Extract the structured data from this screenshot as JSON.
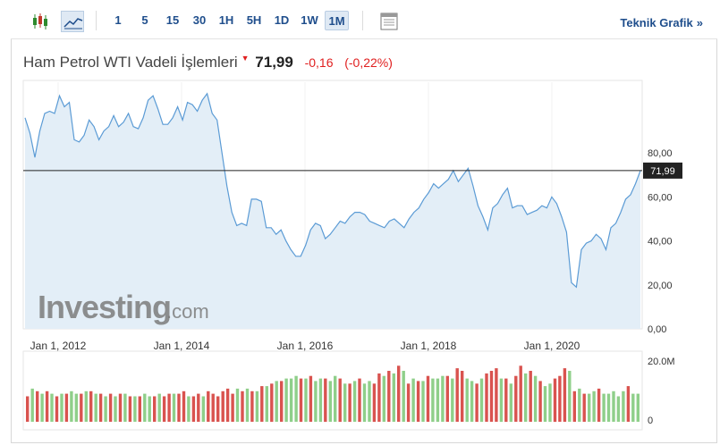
{
  "toolbar": {
    "intervals": [
      "1",
      "5",
      "15",
      "30",
      "1H",
      "5H",
      "1D",
      "1W",
      "1M"
    ],
    "active_interval": "1M",
    "technical_label": "Teknik Grafik",
    "icons": [
      "candlestick-icon",
      "line-chart-icon",
      "table-icon"
    ]
  },
  "header": {
    "instrument": "Ham Petrol WTI Vadeli İşlemleri",
    "last_price": "71,99",
    "change": "-0,16",
    "change_pct": "(-0,22%)",
    "change_color": "#e02020"
  },
  "watermark": {
    "brand": "Investing",
    "suffix": ".com"
  },
  "chart_data": {
    "type": "area",
    "x_tick_labels": [
      "Jan 1, 2012",
      "Jan 1, 2014",
      "Jan 1, 2016",
      "Jan 1, 2018",
      "Jan 1, 2020"
    ],
    "y_tick_labels": [
      "80,00",
      "60,00",
      "40,00",
      "20,00",
      "0,00"
    ],
    "ylim": [
      0,
      100
    ],
    "current_price_label": "71,99",
    "current_price_value": 71.99,
    "series": [
      {
        "values": [
          96,
          89,
          78,
          90,
          98,
          99,
          98,
          106,
          101,
          103,
          86,
          85,
          88,
          95,
          92,
          86,
          90,
          92,
          97,
          92,
          94,
          98,
          92,
          91,
          96,
          104,
          106,
          100,
          93,
          93,
          96,
          101,
          95,
          103,
          102,
          99,
          104,
          107,
          98,
          95,
          80,
          65,
          53,
          47,
          48,
          47,
          59,
          59,
          58,
          46,
          46,
          43,
          45,
          40,
          36,
          33,
          33,
          38,
          45,
          48,
          47,
          41,
          43,
          46,
          49,
          48,
          51,
          53,
          53,
          52,
          49,
          48,
          47,
          46,
          49,
          50,
          48,
          46,
          50,
          53,
          55,
          59,
          62,
          66,
          64,
          66,
          68,
          72,
          67,
          70,
          73,
          65,
          56,
          51,
          45,
          55,
          57,
          61,
          64,
          55,
          56,
          56,
          52,
          53,
          54,
          56,
          55,
          60,
          57,
          51,
          44,
          21,
          19,
          36,
          39,
          40,
          43,
          41,
          36,
          46,
          48,
          53,
          59,
          61,
          66,
          72
        ]
      }
    ],
    "volume_label_top": "20.0M",
    "volume_label_bottom": "0",
    "volume": [
      {
        "v": 10,
        "up": false
      },
      {
        "v": 13,
        "up": true
      },
      {
        "v": 12,
        "up": false
      },
      {
        "v": 11,
        "up": true
      },
      {
        "v": 12,
        "up": false
      },
      {
        "v": 11,
        "up": true
      },
      {
        "v": 10,
        "up": false
      },
      {
        "v": 11,
        "up": true
      },
      {
        "v": 11,
        "up": false
      },
      {
        "v": 12,
        "up": true
      },
      {
        "v": 11,
        "up": true
      },
      {
        "v": 11,
        "up": false
      },
      {
        "v": 12,
        "up": true
      },
      {
        "v": 12,
        "up": false
      },
      {
        "v": 11,
        "up": true
      },
      {
        "v": 11,
        "up": false
      },
      {
        "v": 10,
        "up": true
      },
      {
        "v": 11,
        "up": false
      },
      {
        "v": 10,
        "up": true
      },
      {
        "v": 11,
        "up": false
      },
      {
        "v": 11,
        "up": true
      },
      {
        "v": 10,
        "up": false
      },
      {
        "v": 10,
        "up": true
      },
      {
        "v": 10,
        "up": false
      },
      {
        "v": 11,
        "up": true
      },
      {
        "v": 10,
        "up": true
      },
      {
        "v": 10,
        "up": false
      },
      {
        "v": 11,
        "up": true
      },
      {
        "v": 10,
        "up": false
      },
      {
        "v": 11,
        "up": false
      },
      {
        "v": 11,
        "up": true
      },
      {
        "v": 11,
        "up": false
      },
      {
        "v": 12,
        "up": false
      },
      {
        "v": 10,
        "up": true
      },
      {
        "v": 10,
        "up": false
      },
      {
        "v": 11,
        "up": false
      },
      {
        "v": 10,
        "up": true
      },
      {
        "v": 12,
        "up": false
      },
      {
        "v": 11,
        "up": false
      },
      {
        "v": 10,
        "up": false
      },
      {
        "v": 12,
        "up": false
      },
      {
        "v": 13,
        "up": false
      },
      {
        "v": 11,
        "up": false
      },
      {
        "v": 13,
        "up": true
      },
      {
        "v": 12,
        "up": false
      },
      {
        "v": 13,
        "up": true
      },
      {
        "v": 12,
        "up": false
      },
      {
        "v": 12,
        "up": true
      },
      {
        "v": 14,
        "up": false
      },
      {
        "v": 14,
        "up": true
      },
      {
        "v": 15,
        "up": false
      },
      {
        "v": 16,
        "up": true
      },
      {
        "v": 16,
        "up": false
      },
      {
        "v": 17,
        "up": true
      },
      {
        "v": 17,
        "up": true
      },
      {
        "v": 18,
        "up": true
      },
      {
        "v": 17,
        "up": false
      },
      {
        "v": 17,
        "up": true
      },
      {
        "v": 18,
        "up": false
      },
      {
        "v": 16,
        "up": true
      },
      {
        "v": 17,
        "up": true
      },
      {
        "v": 17,
        "up": false
      },
      {
        "v": 16,
        "up": true
      },
      {
        "v": 18,
        "up": true
      },
      {
        "v": 17,
        "up": false
      },
      {
        "v": 15,
        "up": true
      },
      {
        "v": 15,
        "up": false
      },
      {
        "v": 16,
        "up": true
      },
      {
        "v": 17,
        "up": false
      },
      {
        "v": 15,
        "up": true
      },
      {
        "v": 16,
        "up": true
      },
      {
        "v": 15,
        "up": false
      },
      {
        "v": 19,
        "up": false
      },
      {
        "v": 18,
        "up": true
      },
      {
        "v": 20,
        "up": false
      },
      {
        "v": 19,
        "up": true
      },
      {
        "v": 22,
        "up": false
      },
      {
        "v": 20,
        "up": true
      },
      {
        "v": 15,
        "up": false
      },
      {
        "v": 17,
        "up": true
      },
      {
        "v": 16,
        "up": false
      },
      {
        "v": 16,
        "up": true
      },
      {
        "v": 18,
        "up": false
      },
      {
        "v": 17,
        "up": true
      },
      {
        "v": 17,
        "up": true
      },
      {
        "v": 18,
        "up": true
      },
      {
        "v": 18,
        "up": false
      },
      {
        "v": 17,
        "up": true
      },
      {
        "v": 21,
        "up": false
      },
      {
        "v": 20,
        "up": false
      },
      {
        "v": 17,
        "up": true
      },
      {
        "v": 16,
        "up": true
      },
      {
        "v": 15,
        "up": false
      },
      {
        "v": 17,
        "up": true
      },
      {
        "v": 19,
        "up": false
      },
      {
        "v": 20,
        "up": false
      },
      {
        "v": 21,
        "up": false
      },
      {
        "v": 17,
        "up": true
      },
      {
        "v": 17,
        "up": false
      },
      {
        "v": 15,
        "up": true
      },
      {
        "v": 18,
        "up": false
      },
      {
        "v": 22,
        "up": false
      },
      {
        "v": 19,
        "up": true
      },
      {
        "v": 20,
        "up": false
      },
      {
        "v": 18,
        "up": true
      },
      {
        "v": 16,
        "up": false
      },
      {
        "v": 14,
        "up": true
      },
      {
        "v": 15,
        "up": true
      },
      {
        "v": 17,
        "up": false
      },
      {
        "v": 18,
        "up": false
      },
      {
        "v": 21,
        "up": false
      },
      {
        "v": 20,
        "up": true
      },
      {
        "v": 12,
        "up": false
      },
      {
        "v": 13,
        "up": true
      },
      {
        "v": 11,
        "up": false
      },
      {
        "v": 11,
        "up": true
      },
      {
        "v": 12,
        "up": true
      },
      {
        "v": 13,
        "up": false
      },
      {
        "v": 11,
        "up": true
      },
      {
        "v": 11,
        "up": true
      },
      {
        "v": 12,
        "up": true
      },
      {
        "v": 10,
        "up": true
      },
      {
        "v": 12,
        "up": true
      },
      {
        "v": 14,
        "up": false
      },
      {
        "v": 11,
        "up": true
      },
      {
        "v": 11,
        "up": true
      }
    ],
    "colors": {
      "line": "#5b9bd5",
      "area": "#e3eef7",
      "volume_up": "#8fcf8a",
      "volume_down": "#d9534f",
      "price_line": "#222222",
      "price_tag": "#222222"
    }
  }
}
